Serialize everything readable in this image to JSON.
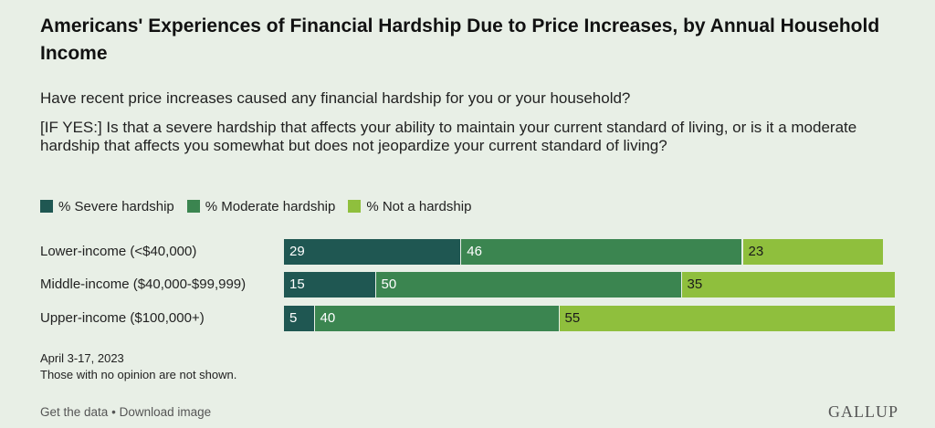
{
  "title": "Americans' Experiences of Financial Hardship Due to Price Increases, by Annual Household Income",
  "question_1": "Have recent price increases caused any financial hardship for you or your household?",
  "question_2": "[IF YES:] Is that a severe hardship that affects your ability to maintain your current standard of living, or is it a moderate hardship that affects you somewhat but does not jeopardize your current standard of living?",
  "notes": {
    "date": "April 3-17, 2023",
    "no_opinion": "Those with no opinion are not shown."
  },
  "footer": {
    "get_data": "Get the data",
    "separator": "•",
    "download": "Download image",
    "logo": "GALLUP"
  },
  "colors": {
    "severe": "#1f5752",
    "moderate": "#3b8550",
    "not": "#8fbf3d",
    "background": "#e8efe6"
  },
  "chart_data": {
    "type": "bar",
    "orientation": "horizontal",
    "stacked": true,
    "categories": [
      "Lower-income (<$40,000)",
      "Middle-income ($40,000-$99,999)",
      "Upper-income ($100,000+)"
    ],
    "series": [
      {
        "name": "% Severe hardship",
        "values": [
          29,
          15,
          5
        ],
        "color": "#1f5752",
        "label_color": "#ffffff"
      },
      {
        "name": "% Moderate hardship",
        "values": [
          46,
          50,
          40
        ],
        "color": "#3b8550",
        "label_color": "#ffffff"
      },
      {
        "name": "% Not a hardship",
        "values": [
          23,
          35,
          55
        ],
        "color": "#8fbf3d",
        "label_color": "#1a1a1a"
      }
    ],
    "xlim": [
      0,
      100
    ],
    "legend_position": "top-left",
    "grid": false
  }
}
